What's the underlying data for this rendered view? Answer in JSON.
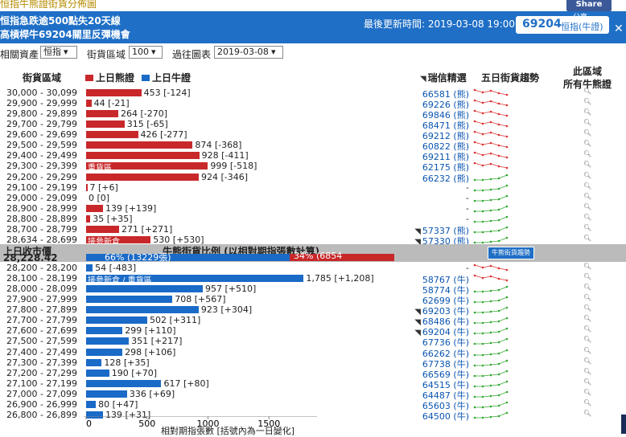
{
  "top_title": "恒指牛熊證街貨分佈圖",
  "header": {
    "line1": "恒指急跌逾500點失20天線",
    "line2": "高槓桿牛69204關里反彈機會",
    "updated": "最後更新時間: 2019-03-08 19:00",
    "index_value": "69204",
    "index_label": "恒指(牛證)",
    "share": "Share",
    "share_small": "分享"
  },
  "filters": {
    "asset_label": "相關資產",
    "asset_value": "恒指",
    "range_label": "街貨區域",
    "range_value": "100",
    "past_label": "過往圖表",
    "past_value": "2019-03-08"
  },
  "columns": {
    "range": "街貨區域",
    "bear_legend": "上日熊證",
    "bull_legend": "上日牛證",
    "pick": "瑞信精選",
    "trend": "五日街貨趨勢",
    "all_line1": "此區域",
    "all_line2": "所有牛熊證"
  },
  "colors": {
    "bear": "#c8282a",
    "bull": "#1a6ac7",
    "header": "#1f6fc6"
  },
  "bear_rows": [
    {
      "range": "30,000 - 30,099",
      "value": 453,
      "label": "453 [-124]",
      "code": "66581 (熊)",
      "arrow": false,
      "spark": "red"
    },
    {
      "range": "29,900 - 29,999",
      "value": 44,
      "label": "44 [-21]",
      "code": "69226 (熊)",
      "arrow": false,
      "spark": "red"
    },
    {
      "range": "29,800 - 29,899",
      "value": 264,
      "label": "264 [-270]",
      "code": "69846 (熊)",
      "arrow": false,
      "spark": "red"
    },
    {
      "range": "29,700 - 29,799",
      "value": 315,
      "label": "315 [-65]",
      "code": "68471 (熊)",
      "arrow": false,
      "spark": "red"
    },
    {
      "range": "29,600 - 29,699",
      "value": 426,
      "label": "426 [-277]",
      "code": "69212 (熊)",
      "arrow": false,
      "spark": "red"
    },
    {
      "range": "29,500 - 29,599",
      "value": 874,
      "label": "874 [-368]",
      "code": "60822 (熊)",
      "arrow": false,
      "spark": "red"
    },
    {
      "range": "29,400 - 29,499",
      "value": 928,
      "label": "928 [-411]",
      "code": "69211 (熊)",
      "arrow": false,
      "spark": "red"
    },
    {
      "range": "29,300 - 29,399",
      "value": 999,
      "label": "999 [-518]",
      "code": "62175 (熊)",
      "arrow": false,
      "spark": "red",
      "inbar": "重貨區"
    },
    {
      "range": "29,200 - 29,299",
      "value": 924,
      "label": "924 [-346]",
      "code": "66232 (熊)",
      "arrow": false,
      "spark": "green"
    },
    {
      "range": "29,100 - 29,199",
      "value": 7,
      "label": "7 [+6]",
      "code": "-",
      "arrow": false,
      "spark": "green"
    },
    {
      "range": "29,000 - 29,099",
      "value": 0,
      "label": "0 [0]",
      "code": "-",
      "arrow": false,
      "spark": "green"
    },
    {
      "range": "28,900 - 28,999",
      "value": 139,
      "label": "139 [+139]",
      "code": "-",
      "arrow": false,
      "spark": "green"
    },
    {
      "range": "28,800 - 28,899",
      "value": 35,
      "label": "35 [+35]",
      "code": "-",
      "arrow": false,
      "spark": "green"
    },
    {
      "range": "28,700 - 28,799",
      "value": 271,
      "label": "271 [+271]",
      "code": "57337 (熊)",
      "arrow": true,
      "spark": "green"
    },
    {
      "range": "28,634 - 28,699",
      "value": 530,
      "label": "530 [+530]",
      "code": "57330 (熊)",
      "arrow": true,
      "spark": "green",
      "inbar": "接參新倉"
    }
  ],
  "split": {
    "close_label": "上日收市價",
    "close_value": "28,228.42",
    "ratio_title": "牛熊街貨比例 (以相對期指張數計算)",
    "bull_ratio": 66,
    "bull_text": "66% (13229張)",
    "bear_ratio": 34,
    "bear_text": "34% (6854",
    "button": "牛熊街貨趨勢"
  },
  "bull_rows": [
    {
      "range": "28,200 - 28,200",
      "value": 54,
      "label": "54 [-483]",
      "code": "-",
      "arrow": false,
      "spark": "red"
    },
    {
      "range": "28,100 - 28,199",
      "value": 1785,
      "label": "1,785 [+1,208]",
      "code": "58767 (牛)",
      "arrow": false,
      "spark": "red",
      "inbar": "接參新倉 / 重貨區"
    },
    {
      "range": "28,000 - 28,099",
      "value": 957,
      "label": "957 [+510]",
      "code": "58774 (牛)",
      "arrow": false,
      "spark": "green"
    },
    {
      "range": "27,900 - 27,999",
      "value": 708,
      "label": "708 [+567]",
      "code": "62699 (牛)",
      "arrow": false,
      "spark": "green"
    },
    {
      "range": "27,800 - 27,899",
      "value": 923,
      "label": "923 [+304]",
      "code": "69203 (牛)",
      "arrow": true,
      "spark": "green"
    },
    {
      "range": "27,700 - 27,799",
      "value": 502,
      "label": "502 [+311]",
      "code": "68486 (牛)",
      "arrow": true,
      "spark": "green"
    },
    {
      "range": "27,600 - 27,699",
      "value": 299,
      "label": "299 [+110]",
      "code": "69204 (牛)",
      "arrow": true,
      "spark": "green"
    },
    {
      "range": "27,500 - 27,599",
      "value": 351,
      "label": "351 [+217]",
      "code": "67736 (牛)",
      "arrow": false,
      "spark": "green"
    },
    {
      "range": "27,400 - 27,499",
      "value": 298,
      "label": "298 [+106]",
      "code": "66262 (牛)",
      "arrow": false,
      "spark": "green"
    },
    {
      "range": "27,300 - 27,399",
      "value": 128,
      "label": "128 [+35]",
      "code": "67738 (牛)",
      "arrow": false,
      "spark": "green"
    },
    {
      "range": "27,200 - 27,299",
      "value": 190,
      "label": "190 [+70]",
      "code": "66569 (牛)",
      "arrow": false,
      "spark": "green"
    },
    {
      "range": "27,100 - 27,199",
      "value": 617,
      "label": "617 [+80]",
      "code": "64515 (牛)",
      "arrow": false,
      "spark": "green"
    },
    {
      "range": "27,000 - 27,099",
      "value": 336,
      "label": "336 [+69]",
      "code": "64487 (牛)",
      "arrow": false,
      "spark": "green"
    },
    {
      "range": "26,900 - 26,999",
      "value": 80,
      "label": "80 [+47]",
      "code": "65603 (牛)",
      "arrow": false,
      "spark": "green"
    },
    {
      "range": "26,800 - 26,899",
      "value": 139,
      "label": "139 [+31]",
      "code": "64500 (牛)",
      "arrow": false,
      "spark": "green"
    }
  ],
  "axis": {
    "ticks": [
      "0",
      "500",
      "1000",
      "1500"
    ],
    "tick_values": [
      0,
      500,
      1000,
      1500
    ],
    "label": "相對期指張數 [括號內為一日變化]"
  }
}
